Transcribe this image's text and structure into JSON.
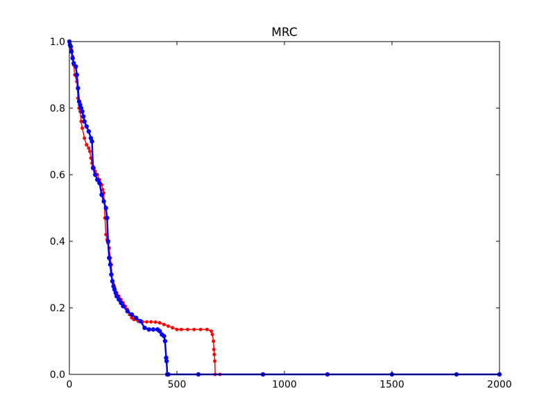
{
  "chart_data": {
    "type": "line",
    "title": "MRC",
    "xlabel": "",
    "ylabel": "",
    "xlim": [
      0,
      2000
    ],
    "ylim": [
      0.0,
      1.0
    ],
    "xticks": [
      0,
      500,
      1000,
      1500,
      2000
    ],
    "xtick_labels": [
      "0",
      "500",
      "1000",
      "1500",
      "2000"
    ],
    "yticks": [
      0.0,
      0.2,
      0.4,
      0.6,
      0.8,
      1.0
    ],
    "ytick_labels": [
      "0.0",
      "0.2",
      "0.4",
      "0.6",
      "0.8",
      "1.0"
    ],
    "grid": false,
    "legend": false,
    "colors": {
      "red": "#ff0000",
      "blue": "#0000ff"
    },
    "series": [
      {
        "color": "red",
        "x": [
          0,
          5,
          10,
          15,
          20,
          25,
          35,
          40,
          45,
          50,
          55,
          60,
          70,
          80,
          90,
          95,
          100,
          105,
          110,
          115,
          120,
          130,
          140,
          150,
          155,
          160,
          165,
          170,
          175,
          180,
          185,
          190,
          195,
          200,
          205,
          210,
          220,
          230,
          240,
          250,
          260,
          270,
          280,
          290,
          300,
          320,
          340,
          360,
          380,
          400,
          420,
          440,
          460,
          480,
          500,
          520,
          550,
          580,
          610,
          640,
          660,
          665,
          670,
          672,
          674,
          676,
          678,
          700,
          900,
          1200,
          1500,
          1800,
          2000
        ],
        "y": [
          1.0,
          0.985,
          0.975,
          0.955,
          0.93,
          0.9,
          0.88,
          0.83,
          0.8,
          0.79,
          0.76,
          0.74,
          0.71,
          0.69,
          0.68,
          0.67,
          0.65,
          0.635,
          0.625,
          0.62,
          0.61,
          0.6,
          0.585,
          0.57,
          0.555,
          0.545,
          0.47,
          0.42,
          0.405,
          0.395,
          0.38,
          0.35,
          0.33,
          0.28,
          0.27,
          0.26,
          0.245,
          0.235,
          0.225,
          0.215,
          0.205,
          0.195,
          0.18,
          0.17,
          0.165,
          0.16,
          0.158,
          0.158,
          0.158,
          0.157,
          0.155,
          0.15,
          0.145,
          0.14,
          0.135,
          0.135,
          0.135,
          0.135,
          0.135,
          0.135,
          0.13,
          0.12,
          0.1,
          0.075,
          0.06,
          0.04,
          0.0,
          0.0,
          0.0,
          0.0,
          0.0,
          0.0,
          0.0
        ]
      },
      {
        "color": "blue",
        "x": [
          0,
          3,
          6,
          10,
          15,
          20,
          30,
          35,
          40,
          45,
          50,
          55,
          60,
          65,
          70,
          80,
          90,
          100,
          105,
          110,
          120,
          130,
          140,
          150,
          160,
          170,
          175,
          180,
          185,
          190,
          195,
          200,
          205,
          210,
          215,
          220,
          230,
          240,
          250,
          270,
          290,
          310,
          330,
          350,
          370,
          390,
          410,
          420,
          430,
          440,
          445,
          450,
          452,
          455,
          460,
          600,
          900,
          1200,
          1500,
          1800,
          2000
        ],
        "y": [
          1.0,
          0.99,
          0.985,
          0.97,
          0.95,
          0.935,
          0.925,
          0.9,
          0.86,
          0.82,
          0.81,
          0.8,
          0.79,
          0.775,
          0.76,
          0.745,
          0.73,
          0.71,
          0.7,
          0.62,
          0.6,
          0.585,
          0.575,
          0.54,
          0.52,
          0.5,
          0.47,
          0.4,
          0.35,
          0.33,
          0.3,
          0.28,
          0.265,
          0.255,
          0.245,
          0.235,
          0.225,
          0.215,
          0.205,
          0.19,
          0.18,
          0.17,
          0.16,
          0.14,
          0.135,
          0.135,
          0.135,
          0.13,
          0.12,
          0.115,
          0.1,
          0.05,
          0.04,
          0.0,
          0.0,
          0.0,
          0.0,
          0.0,
          0.0,
          0.0,
          0.0
        ]
      }
    ]
  }
}
